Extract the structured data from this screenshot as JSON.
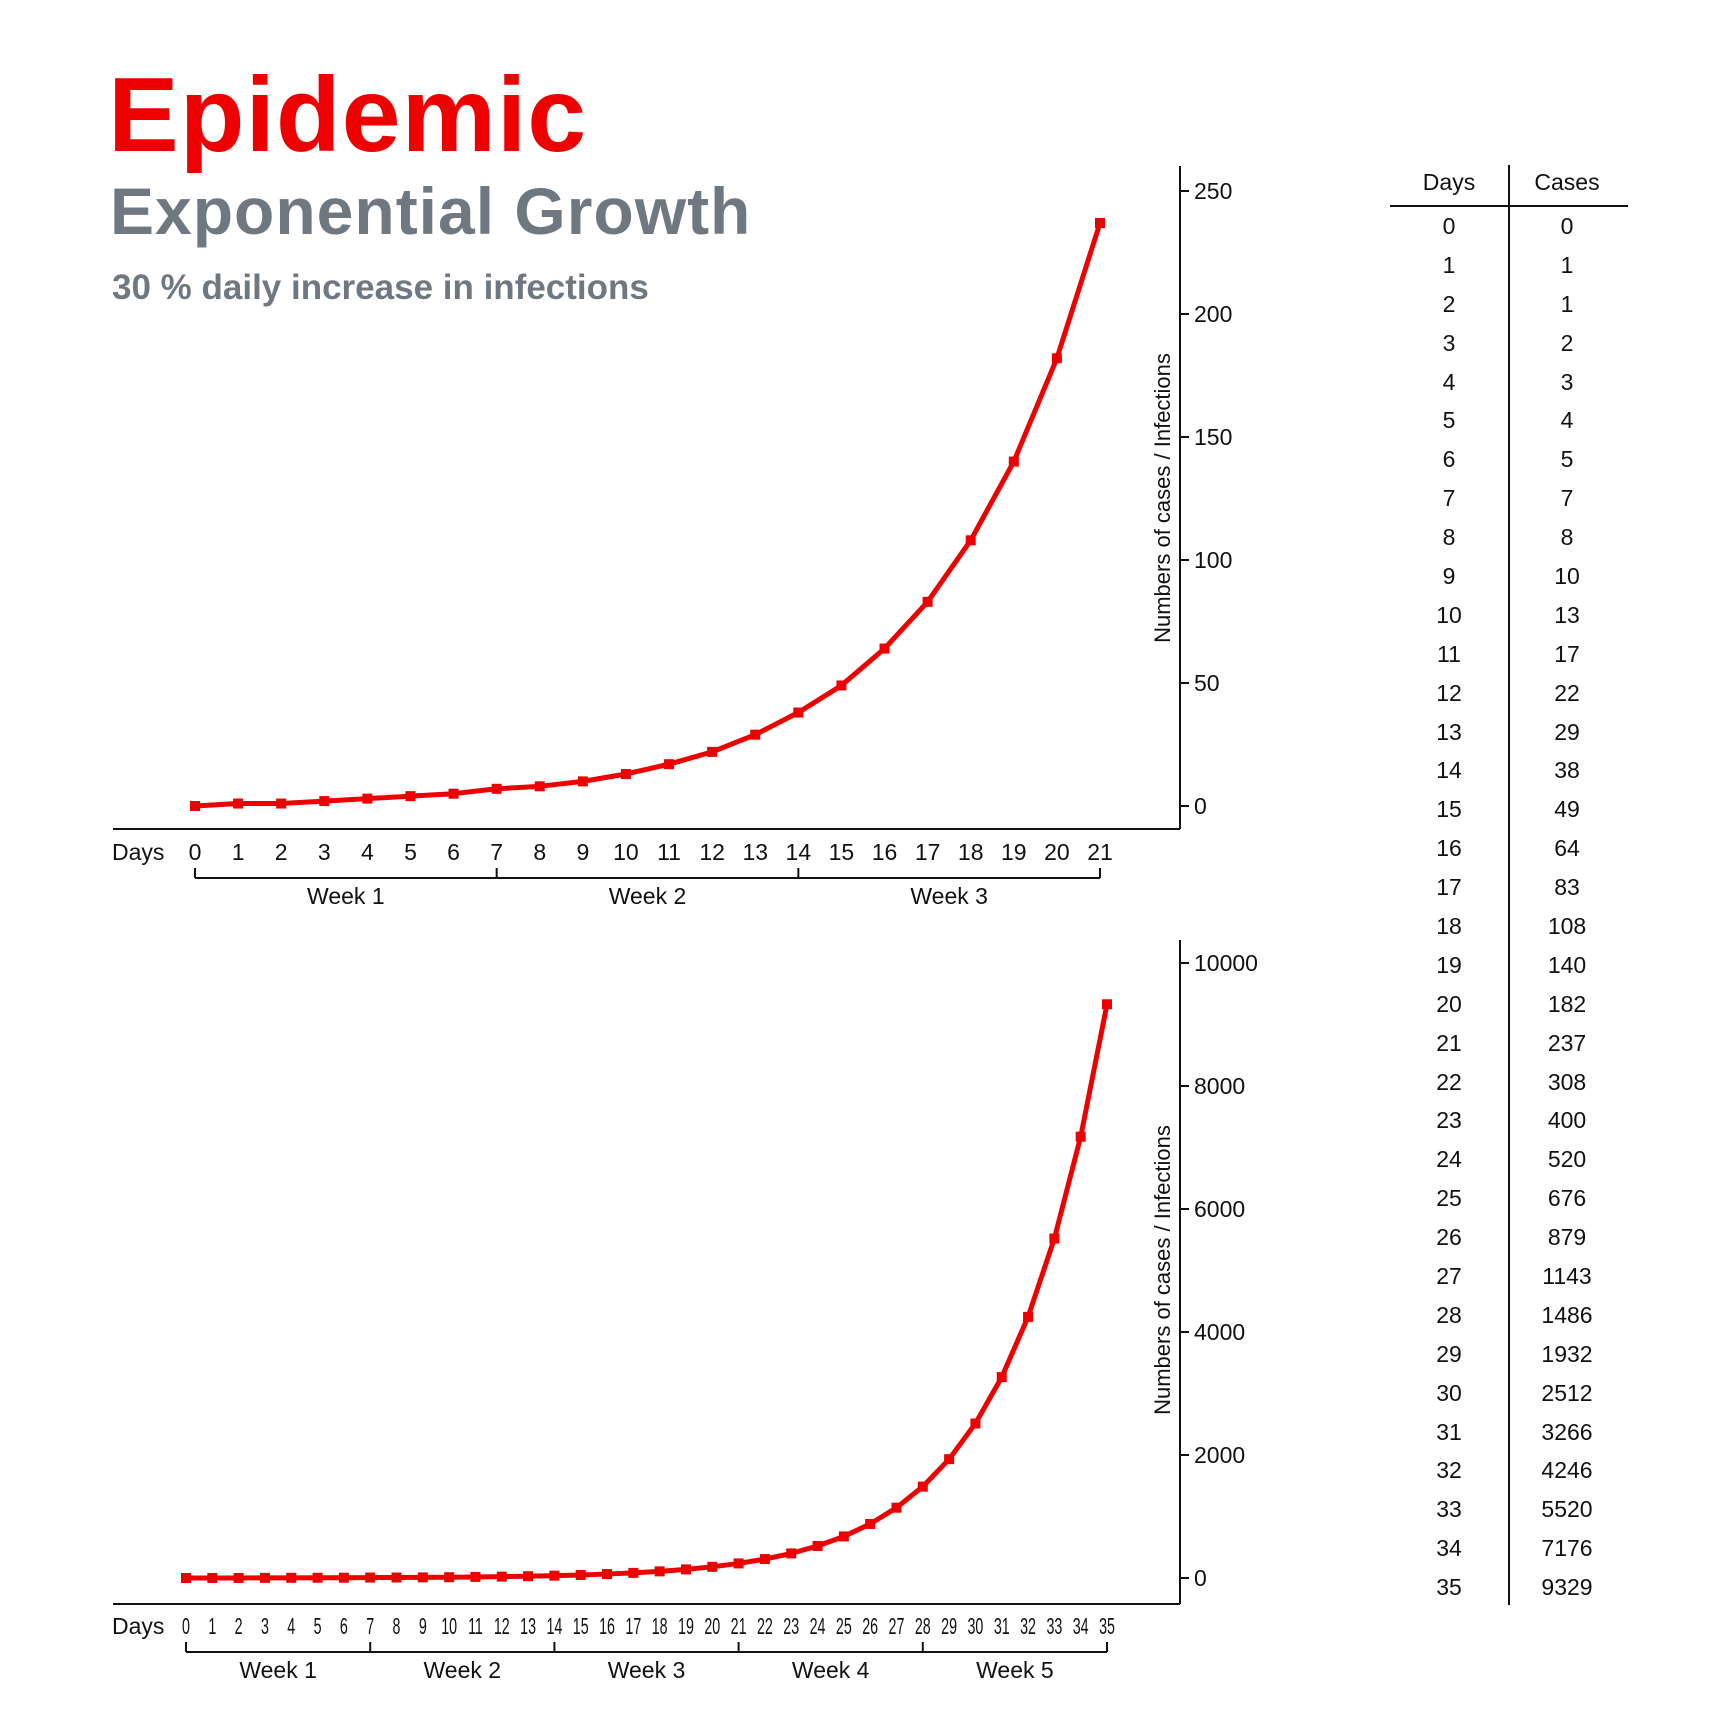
{
  "header": {
    "title": "Epidemic",
    "subtitle": "Exponential Growth",
    "tagline": "30 % daily increase in infections"
  },
  "colors": {
    "accent": "#ee0000",
    "gray": "#6f7880",
    "ink": "#111111"
  },
  "chart_data": [
    {
      "type": "line",
      "xlabel": "Days",
      "ylabel": "Numbers of cases / Infections",
      "x": [
        0,
        1,
        2,
        3,
        4,
        5,
        6,
        7,
        8,
        9,
        10,
        11,
        12,
        13,
        14,
        15,
        16,
        17,
        18,
        19,
        20,
        21
      ],
      "series": [
        {
          "values": [
            0,
            1,
            1,
            2,
            3,
            4,
            5,
            7,
            8,
            10,
            13,
            17,
            22,
            29,
            38,
            49,
            64,
            83,
            108,
            140,
            182,
            237
          ]
        }
      ],
      "ylim": [
        0,
        250
      ],
      "yticks": [
        0,
        50,
        100,
        150,
        200,
        250
      ],
      "weeks": [
        "Week 1",
        "Week 2",
        "Week 3"
      ],
      "legend": "none",
      "grid": false
    },
    {
      "type": "line",
      "xlabel": "Days",
      "ylabel": "Numbers of cases / Infections",
      "x": [
        0,
        1,
        2,
        3,
        4,
        5,
        6,
        7,
        8,
        9,
        10,
        11,
        12,
        13,
        14,
        15,
        16,
        17,
        18,
        19,
        20,
        21,
        22,
        23,
        24,
        25,
        26,
        27,
        28,
        29,
        30,
        31,
        32,
        33,
        34,
        35
      ],
      "series": [
        {
          "values": [
            0,
            1,
            1,
            2,
            3,
            4,
            5,
            7,
            8,
            10,
            13,
            17,
            22,
            29,
            38,
            49,
            64,
            83,
            108,
            140,
            182,
            237,
            308,
            400,
            520,
            676,
            879,
            1143,
            1486,
            1932,
            2512,
            3266,
            4246,
            5520,
            7176,
            9329
          ]
        }
      ],
      "ylim": [
        0,
        10000
      ],
      "yticks": [
        0,
        2000,
        4000,
        6000,
        8000,
        10000
      ],
      "weeks": [
        "Week 1",
        "Week 2",
        "Week 3",
        "Week 4",
        "Week 5"
      ],
      "legend": "none",
      "grid": false
    },
    {
      "type": "table",
      "columns": [
        "Days",
        "Cases"
      ],
      "rows": [
        [
          "0",
          "0"
        ],
        [
          "1",
          "1"
        ],
        [
          "2",
          "1"
        ],
        [
          "3",
          "2"
        ],
        [
          "4",
          "3"
        ],
        [
          "5",
          "4"
        ],
        [
          "6",
          "5"
        ],
        [
          "7",
          "7"
        ],
        [
          "8",
          "8"
        ],
        [
          "9",
          "10"
        ],
        [
          "10",
          "13"
        ],
        [
          "11",
          "17"
        ],
        [
          "12",
          "22"
        ],
        [
          "13",
          "29"
        ],
        [
          "14",
          "38"
        ],
        [
          "15",
          "49"
        ],
        [
          "16",
          "64"
        ],
        [
          "17",
          "83"
        ],
        [
          "18",
          "108"
        ],
        [
          "19",
          "140"
        ],
        [
          "20",
          "182"
        ],
        [
          "21",
          "237"
        ],
        [
          "22",
          "308"
        ],
        [
          "23",
          "400"
        ],
        [
          "24",
          "520"
        ],
        [
          "25",
          "676"
        ],
        [
          "26",
          "879"
        ],
        [
          "27",
          "1143"
        ],
        [
          "28",
          "1486"
        ],
        [
          "29",
          "1932"
        ],
        [
          "30",
          "2512"
        ],
        [
          "31",
          "3266"
        ],
        [
          "32",
          "4246"
        ],
        [
          "33",
          "5520"
        ],
        [
          "34",
          "7176"
        ],
        [
          "35",
          "9329"
        ]
      ]
    }
  ]
}
